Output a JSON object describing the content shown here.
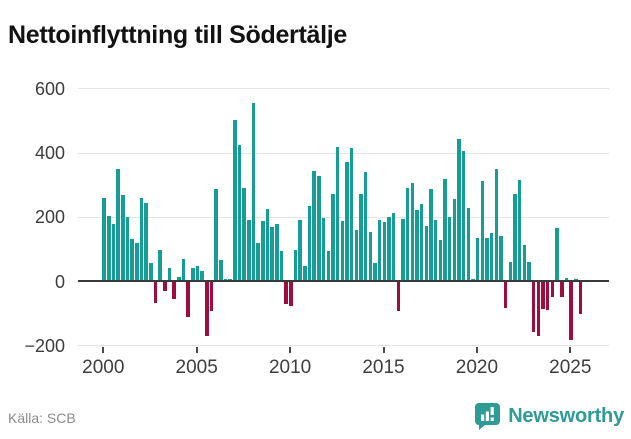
{
  "title": "Nettoinflyttning till Södertälje",
  "footer": {
    "source_label": "Källa: SCB",
    "brand": "Newsworthy"
  },
  "colors": {
    "positive_bar": "#169e96",
    "negative_bar": "#9e0d3d",
    "brand_teal": "#2e9b94",
    "grid": "#e4e4e4",
    "zero_line": "#3a3a3a",
    "axis_text": "#3d3d3d",
    "source_text": "#8c8c8c",
    "title_text": "#121212"
  },
  "chart_data": {
    "type": "bar",
    "title": "Nettoinflyttning till Södertälje",
    "xlabel": "",
    "ylabel": "",
    "ylim": [
      -200,
      600
    ],
    "yticks": [
      600,
      400,
      200,
      0,
      -200
    ],
    "ytick_labels": [
      "600",
      "400",
      "200",
      "0",
      "−200"
    ],
    "xticks": [
      2000,
      2005,
      2010,
      2015,
      2020,
      2025
    ],
    "xtick_labels": [
      "2000",
      "2005",
      "2010",
      "2015",
      "2020",
      "2025"
    ],
    "grid": true,
    "legend": false,
    "frequency": "quarterly",
    "series_by_year": [
      {
        "year": 2000,
        "q": [
          257,
          201,
          177,
          349
        ]
      },
      {
        "year": 2001,
        "q": [
          267,
          199,
          130,
          117
        ]
      },
      {
        "year": 2002,
        "q": [
          258,
          244,
          57,
          -65
        ]
      },
      {
        "year": 2003,
        "q": [
          97,
          -27,
          42,
          -54
        ]
      },
      {
        "year": 2004,
        "q": [
          14,
          69,
          -110,
          40
        ]
      },
      {
        "year": 2005,
        "q": [
          47,
          32,
          -169,
          -90
        ]
      },
      {
        "year": 2006,
        "q": [
          288,
          67,
          5,
          5
        ]
      },
      {
        "year": 2007,
        "q": [
          502,
          422,
          290,
          191
        ]
      },
      {
        "year": 2008,
        "q": [
          553,
          118,
          186,
          225
        ]
      },
      {
        "year": 2009,
        "q": [
          167,
          177,
          93,
          -69
        ]
      },
      {
        "year": 2010,
        "q": [
          -74,
          98,
          190,
          48
        ]
      },
      {
        "year": 2011,
        "q": [
          234,
          343,
          328,
          195
        ]
      },
      {
        "year": 2012,
        "q": [
          93,
          270,
          417,
          188
        ]
      },
      {
        "year": 2013,
        "q": [
          371,
          413,
          160,
          272
        ]
      },
      {
        "year": 2014,
        "q": [
          341,
          153,
          55,
          190
        ]
      },
      {
        "year": 2015,
        "q": [
          183,
          198,
          211,
          -90
        ]
      },
      {
        "year": 2016,
        "q": [
          194,
          290,
          306,
          222
        ]
      },
      {
        "year": 2017,
        "q": [
          240,
          172,
          287,
          189
        ]
      },
      {
        "year": 2018,
        "q": [
          129,
          319,
          199,
          256
        ]
      },
      {
        "year": 2019,
        "q": [
          441,
          405,
          228,
          5
        ]
      },
      {
        "year": 2020,
        "q": [
          135,
          310,
          135,
          150
        ]
      },
      {
        "year": 2021,
        "q": [
          348,
          140,
          -80,
          58
        ]
      },
      {
        "year": 2022,
        "q": [
          270,
          315,
          111,
          58
        ]
      },
      {
        "year": 2023,
        "q": [
          -154,
          -168,
          -85,
          -88
        ]
      },
      {
        "year": 2024,
        "q": [
          -45,
          165,
          -45,
          10
        ]
      },
      {
        "year": 2025,
        "q": [
          -180,
          5,
          -100
        ]
      }
    ]
  }
}
